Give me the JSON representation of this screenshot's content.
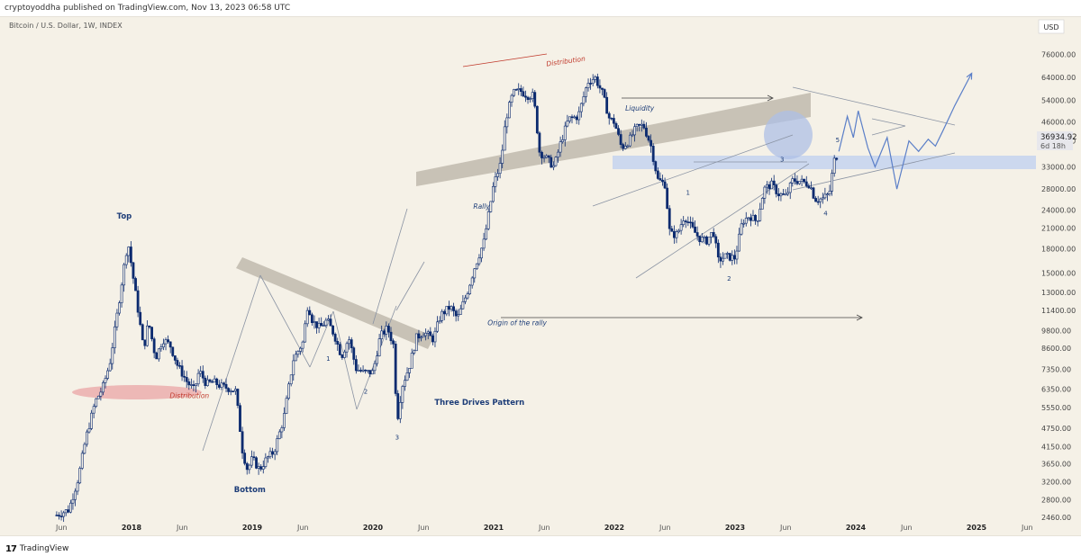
{
  "header": {
    "publish_line": "cryptoyoddha published on TradingView.com, Nov 13, 2023 06:58 UTC"
  },
  "symbol": {
    "title": "Bitcoin / U.S. Dollar, 1W, INDEX"
  },
  "price_axis": {
    "currency_label": "USD",
    "last_price": "36934.92",
    "countdown": "6d 18h"
  },
  "footer": {
    "logo_mark": "17",
    "brand": "TradingView"
  },
  "colors": {
    "background": "#f5f1e7",
    "candle": "#0b2a6f",
    "projection": "#5b7fc8",
    "zone_gray": "#bdb6aa",
    "zone_blue": "#c9d6ee",
    "distribution_red": "#e9a4a6",
    "annotation_text": "#1d3d78",
    "distribution_text": "#c0392b"
  },
  "chart_data": {
    "type": "candlestick",
    "title": "Bitcoin / U.S. Dollar, 1W, INDEX",
    "y_scale": "log",
    "ylim": [
      2300,
      90000
    ],
    "y_ticks": [
      "76000.00",
      "64000.00",
      "54000.00",
      "46000.00",
      "40000.00",
      "33000.00",
      "28000.00",
      "24000.00",
      "21000.00",
      "18000.00",
      "15000.00",
      "13000.00",
      "11400.00",
      "9800.00",
      "8600.00",
      "7350.00",
      "6350.00",
      "5550.00",
      "4750.00",
      "4150.00",
      "3650.00",
      "3200.00",
      "2800.00",
      "2460.00"
    ],
    "x_ticks": [
      {
        "label": "Jun",
        "t": 2017.42
      },
      {
        "label": "2018",
        "t": 2018.0
      },
      {
        "label": "Jun",
        "t": 2018.42
      },
      {
        "label": "2019",
        "t": 2019.0
      },
      {
        "label": "Jun",
        "t": 2019.42
      },
      {
        "label": "2020",
        "t": 2020.0
      },
      {
        "label": "Jun",
        "t": 2020.42
      },
      {
        "label": "2021",
        "t": 2021.0
      },
      {
        "label": "Jun",
        "t": 2021.42
      },
      {
        "label": "2022",
        "t": 2022.0
      },
      {
        "label": "Jun",
        "t": 2022.42
      },
      {
        "label": "2023",
        "t": 2023.0
      },
      {
        "label": "Jun",
        "t": 2023.42
      },
      {
        "label": "2024",
        "t": 2024.0
      },
      {
        "label": "Jun",
        "t": 2024.42
      },
      {
        "label": "2025",
        "t": 2025.0
      },
      {
        "label": "Jun",
        "t": 2025.42
      }
    ],
    "price_path": [
      [
        2017.38,
        2500
      ],
      [
        2017.48,
        2600
      ],
      [
        2017.56,
        3300
      ],
      [
        2017.62,
        4400
      ],
      [
        2017.7,
        5800
      ],
      [
        2017.76,
        6400
      ],
      [
        2017.82,
        7700
      ],
      [
        2017.88,
        11000
      ],
      [
        2017.94,
        16000
      ],
      [
        2017.97,
        19000
      ],
      [
        2018.02,
        14000
      ],
      [
        2018.06,
        11000
      ],
      [
        2018.1,
        8500
      ],
      [
        2018.14,
        10500
      ],
      [
        2018.2,
        8000
      ],
      [
        2018.26,
        9200
      ],
      [
        2018.32,
        8800
      ],
      [
        2018.38,
        7600
      ],
      [
        2018.46,
        6700
      ],
      [
        2018.52,
        6300
      ],
      [
        2018.56,
        7300
      ],
      [
        2018.62,
        6600
      ],
      [
        2018.68,
        6700
      ],
      [
        2018.74,
        6500
      ],
      [
        2018.8,
        6400
      ],
      [
        2018.86,
        6300
      ],
      [
        2018.88,
        5500
      ],
      [
        2018.92,
        4000
      ],
      [
        2018.96,
        3500
      ],
      [
        2019.0,
        3800
      ],
      [
        2019.06,
        3500
      ],
      [
        2019.12,
        3800
      ],
      [
        2019.18,
        4000
      ],
      [
        2019.26,
        5100
      ],
      [
        2019.34,
        7900
      ],
      [
        2019.42,
        9000
      ],
      [
        2019.46,
        12000
      ],
      [
        2019.5,
        10500
      ],
      [
        2019.56,
        10000
      ],
      [
        2019.62,
        10600
      ],
      [
        2019.68,
        9500
      ],
      [
        2019.74,
        8100
      ],
      [
        2019.8,
        9300
      ],
      [
        2019.86,
        7400
      ],
      [
        2019.92,
        7200
      ],
      [
        2020.0,
        7200
      ],
      [
        2020.06,
        9400
      ],
      [
        2020.12,
        10000
      ],
      [
        2020.17,
        8800
      ],
      [
        2020.2,
        5000
      ],
      [
        2020.24,
        6500
      ],
      [
        2020.3,
        7500
      ],
      [
        2020.36,
        9300
      ],
      [
        2020.42,
        9700
      ],
      [
        2020.5,
        9200
      ],
      [
        2020.56,
        11000
      ],
      [
        2020.64,
        11700
      ],
      [
        2020.7,
        10700
      ],
      [
        2020.78,
        13000
      ],
      [
        2020.84,
        15600
      ],
      [
        2020.92,
        19000
      ],
      [
        2021.0,
        29000
      ],
      [
        2021.06,
        34000
      ],
      [
        2021.1,
        47000
      ],
      [
        2021.16,
        57000
      ],
      [
        2021.22,
        58000
      ],
      [
        2021.28,
        56000
      ],
      [
        2021.33,
        56000
      ],
      [
        2021.38,
        37000
      ],
      [
        2021.44,
        35000
      ],
      [
        2021.5,
        33000
      ],
      [
        2021.56,
        40000
      ],
      [
        2021.62,
        47000
      ],
      [
        2021.7,
        48000
      ],
      [
        2021.78,
        62000
      ],
      [
        2021.84,
        64000
      ],
      [
        2021.9,
        57000
      ],
      [
        2021.96,
        47000
      ],
      [
        2022.0,
        46000
      ],
      [
        2022.06,
        38000
      ],
      [
        2022.12,
        40000
      ],
      [
        2022.18,
        44000
      ],
      [
        2022.24,
        45000
      ],
      [
        2022.3,
        39000
      ],
      [
        2022.36,
        30000
      ],
      [
        2022.42,
        29000
      ],
      [
        2022.46,
        20000
      ],
      [
        2022.52,
        20000
      ],
      [
        2022.58,
        23000
      ],
      [
        2022.64,
        21000
      ],
      [
        2022.7,
        19500
      ],
      [
        2022.76,
        19000
      ],
      [
        2022.82,
        20500
      ],
      [
        2022.86,
        16500
      ],
      [
        2022.92,
        17000
      ],
      [
        2023.0,
        16800
      ],
      [
        2023.06,
        22000
      ],
      [
        2023.12,
        23000
      ],
      [
        2023.18,
        22000
      ],
      [
        2023.24,
        28000
      ],
      [
        2023.3,
        29000
      ],
      [
        2023.36,
        27000
      ],
      [
        2023.42,
        26500
      ],
      [
        2023.48,
        30000
      ],
      [
        2023.56,
        29500
      ],
      [
        2023.62,
        29000
      ],
      [
        2023.66,
        26000
      ],
      [
        2023.72,
        26000
      ],
      [
        2023.78,
        27000
      ],
      [
        2023.82,
        34500
      ],
      [
        2023.86,
        36934.92
      ]
    ],
    "projection_path": [
      [
        2023.86,
        37000
      ],
      [
        2023.93,
        48000
      ],
      [
        2023.98,
        41000
      ],
      [
        2024.02,
        50000
      ],
      [
        2024.1,
        38000
      ],
      [
        2024.16,
        33000
      ],
      [
        2024.26,
        41000
      ],
      [
        2024.34,
        28000
      ],
      [
        2024.44,
        40000
      ],
      [
        2024.52,
        37000
      ],
      [
        2024.6,
        40500
      ],
      [
        2024.66,
        38500
      ],
      [
        2024.72,
        43000
      ],
      [
        2024.82,
        52000
      ],
      [
        2024.96,
        66000
      ]
    ],
    "annotations": [
      {
        "text": "Top",
        "t": 2017.94,
        "price": 22500
      },
      {
        "text": "Distribution",
        "t": 2018.48,
        "price": 5950
      },
      {
        "text": "Bottom",
        "t": 2018.98,
        "price": 2960
      },
      {
        "text": "1",
        "t": 2019.63,
        "price": 7850
      },
      {
        "text": "2",
        "t": 2019.94,
        "price": 6150
      },
      {
        "text": "3",
        "t": 2020.2,
        "price": 4380
      },
      {
        "text": "Three Drives Pattern",
        "t": 2020.51,
        "price": 5650
      },
      {
        "text": "Origin of the rally",
        "t": 2020.95,
        "price": 10200
      },
      {
        "text": "Rally",
        "t": 2020.9,
        "price": 24200
      },
      {
        "text": "Distribution",
        "t": 2021.6,
        "price": 71000
      },
      {
        "text": "Liquidity",
        "t": 2022.21,
        "price": 50000
      },
      {
        "text": "1",
        "t": 2022.61,
        "price": 26800
      },
      {
        "text": "2",
        "t": 2022.95,
        "price": 14200
      },
      {
        "text": "3",
        "t": 2023.39,
        "price": 34300
      },
      {
        "text": "4",
        "t": 2023.75,
        "price": 23000
      },
      {
        "text": "5",
        "t": 2023.85,
        "price": 39600
      }
    ]
  }
}
